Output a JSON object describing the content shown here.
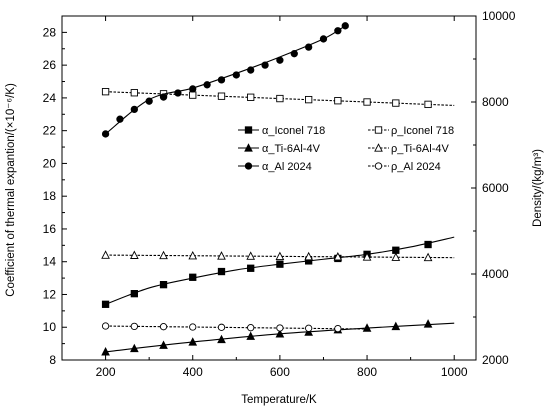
{
  "chart_data": {
    "type": "line",
    "xlabel": "Temperature/K",
    "ylabel_left": "Coefficient of thermal expantion/(×10⁻⁶/K)",
    "ylabel_right": "Density/(kg/m³)",
    "xlim": [
      100,
      1050
    ],
    "xticks": [
      200,
      400,
      600,
      800,
      1000
    ],
    "ylim_left": [
      8,
      29
    ],
    "yticks_left": [
      8,
      10,
      12,
      14,
      16,
      18,
      20,
      22,
      24,
      26,
      28
    ],
    "ylim_right": [
      2000,
      10000
    ],
    "yticks_right": [
      2000,
      4000,
      6000,
      8000,
      10000
    ],
    "legend_position": "center-right",
    "series": [
      {
        "name": "α_Iconel 718",
        "axis": "left",
        "marker": "square-filled",
        "curve_x": [
          200,
          300,
          400,
          500,
          600,
          700,
          800,
          900,
          1000
        ],
        "curve_y": [
          11.4,
          12.4,
          13.0,
          13.5,
          13.85,
          14.15,
          14.45,
          14.9,
          15.5
        ],
        "x": [
          200,
          266,
          333,
          400,
          466,
          533,
          600,
          666,
          733,
          800,
          866,
          940
        ],
        "y": [
          11.4,
          12.05,
          12.6,
          13.05,
          13.4,
          13.6,
          13.85,
          14.05,
          14.2,
          14.45,
          14.7,
          15.05
        ]
      },
      {
        "name": "ρ_Iconel 718",
        "axis": "right",
        "marker": "square-open",
        "curve_x": [
          200,
          1000
        ],
        "curve_y": [
          8240,
          7920
        ],
        "x": [
          200,
          266,
          333,
          400,
          466,
          533,
          600,
          666,
          733,
          800,
          866,
          940
        ],
        "y": [
          8240,
          8215,
          8190,
          8160,
          8135,
          8110,
          8080,
          8055,
          8030,
          8000,
          7975,
          7945
        ]
      },
      {
        "name": "α_Ti-6Al-4V",
        "axis": "left",
        "marker": "triangle-filled",
        "curve_x": [
          200,
          400,
          600,
          800,
          1000
        ],
        "curve_y": [
          8.5,
          9.1,
          9.6,
          9.95,
          10.25
        ],
        "x": [
          200,
          266,
          333,
          400,
          466,
          533,
          600,
          666,
          733,
          800,
          866,
          940
        ],
        "y": [
          8.5,
          8.7,
          8.9,
          9.1,
          9.25,
          9.45,
          9.6,
          9.7,
          9.85,
          9.95,
          10.05,
          10.2
        ]
      },
      {
        "name": "ρ_Ti-6Al-4V",
        "axis": "right",
        "marker": "triangle-open",
        "curve_x": [
          200,
          1000
        ],
        "curve_y": [
          4440,
          4380
        ],
        "x": [
          200,
          266,
          333,
          400,
          466,
          533,
          600,
          666,
          733,
          800,
          866,
          940
        ],
        "y": [
          4440,
          4435,
          4430,
          4425,
          4420,
          4415,
          4410,
          4405,
          4400,
          4395,
          4390,
          4385
        ]
      },
      {
        "name": "α_Al 2024",
        "axis": "left",
        "marker": "circle-filled",
        "curve_x": [
          200,
          300,
          400,
          500,
          600,
          700,
          750
        ],
        "curve_y": [
          21.8,
          23.9,
          24.6,
          25.5,
          26.5,
          27.6,
          28.4
        ],
        "x": [
          200,
          233,
          266,
          300,
          333,
          366,
          400,
          433,
          466,
          500,
          533,
          566,
          600,
          633,
          666,
          700,
          733,
          750
        ],
        "y": [
          21.8,
          22.7,
          23.3,
          23.8,
          24.05,
          24.3,
          24.55,
          24.8,
          25.1,
          25.4,
          25.7,
          26.0,
          26.3,
          26.7,
          27.1,
          27.6,
          28.1,
          28.4
        ]
      },
      {
        "name": "ρ_Al 2024",
        "axis": "right",
        "marker": "circle-open",
        "curve_x": [
          200,
          800
        ],
        "curve_y": [
          2790,
          2720
        ],
        "x": [
          200,
          266,
          333,
          400,
          466,
          533,
          600,
          666,
          733
        ],
        "y": [
          2790,
          2782,
          2775,
          2767,
          2760,
          2752,
          2745,
          2737,
          2730
        ]
      }
    ]
  }
}
